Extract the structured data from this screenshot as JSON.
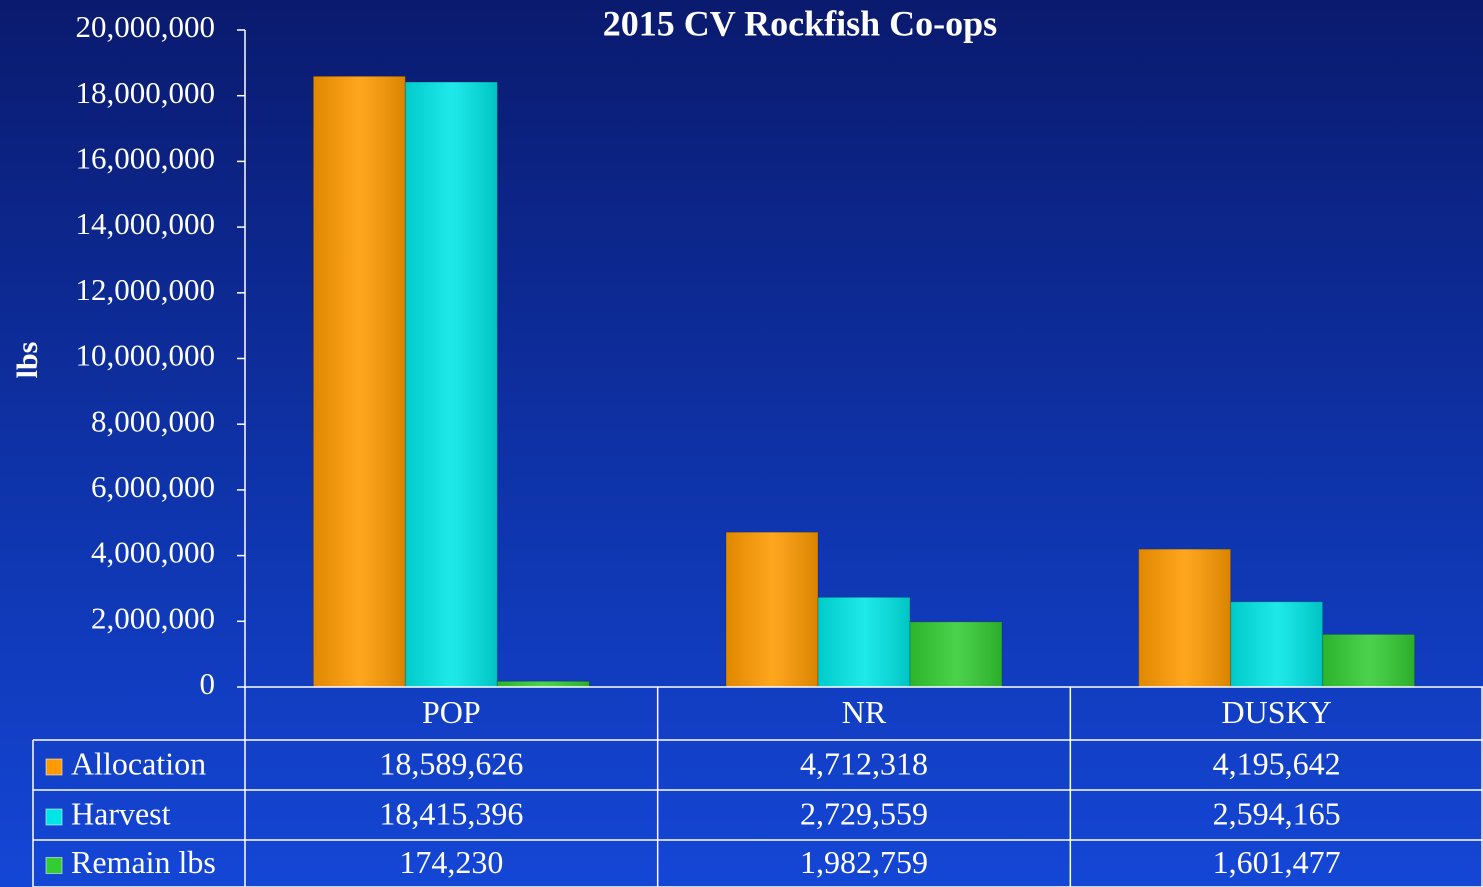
{
  "chart_data": {
    "type": "bar",
    "title": "2015 CV Rockfish Co-ops",
    "y_label": "lbs",
    "categories": [
      "POP",
      "NR",
      "DUSKY"
    ],
    "series": [
      {
        "name": "Allocation",
        "color": "#ff9a00",
        "values": [
          18589626,
          4712318,
          4195642
        ],
        "value_labels": [
          "18,589,626",
          "4,712,318",
          "4,195,642"
        ]
      },
      {
        "name": "Harvest",
        "color": "#00e6e6",
        "values": [
          18415396,
          2729559,
          2594165
        ],
        "value_labels": [
          "18,415,396",
          "2,729,559",
          "2,594,165"
        ]
      },
      {
        "name": "Remain lbs",
        "color": "#33cc33",
        "values": [
          174230,
          1982759,
          1601477
        ],
        "value_labels": [
          "174,230",
          "1,982,759",
          "1,601,477"
        ]
      }
    ],
    "ylim": [
      0,
      20000000
    ],
    "yticks": [
      0,
      {
        "value": 2000000,
        "label": "2,000,000"
      },
      {
        "value": 4000000,
        "label": "4,000,000"
      },
      {
        "value": 6000000,
        "label": "6,000,000"
      },
      {
        "value": 8000000,
        "label": "8,000,000"
      },
      {
        "value": 10000000,
        "label": "10,000,000"
      },
      {
        "value": 12000000,
        "label": "12,000,000"
      },
      {
        "value": 14000000,
        "label": "14,000,000"
      },
      {
        "value": 16000000,
        "label": "16,000,000"
      },
      {
        "value": 18000000,
        "label": "18,000,000"
      },
      {
        "value": 20000000,
        "label": "20,000,000"
      }
    ]
  }
}
